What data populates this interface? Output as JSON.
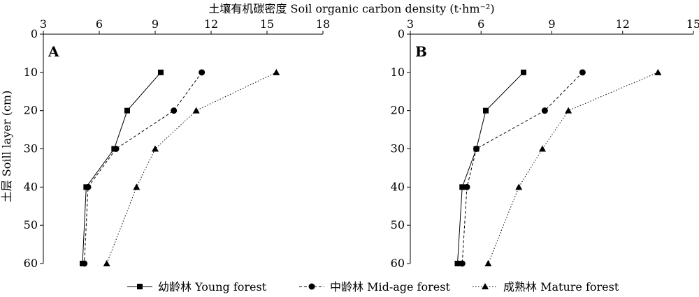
{
  "top_title": "土壤有机碳密度 Soil organic carbon density (t·hm⁻²)",
  "ylabel": "土层 Soill layer (cm)",
  "legend": [
    {
      "label": "幼龄林 Young forest",
      "marker": "square",
      "dash": "solid"
    },
    {
      "label": "中龄林 Mid-age forest",
      "marker": "circle",
      "dash": "dashed"
    },
    {
      "label": "成熟林 Mature forest",
      "marker": "triangle",
      "dash": "dotted"
    }
  ],
  "chart_data": [
    {
      "type": "line",
      "panel": "A",
      "x_axis_position": "top",
      "xlim": [
        3,
        18
      ],
      "xticks": [
        3,
        6,
        9,
        12,
        15,
        18
      ],
      "ylim": [
        0,
        60
      ],
      "yticks": [
        0,
        10,
        20,
        30,
        40,
        50,
        60
      ],
      "y_inverted": true,
      "series": [
        {
          "name": "幼龄林 Young forest",
          "depth": [
            10,
            20,
            30,
            40,
            60
          ],
          "x": [
            9.3,
            7.5,
            6.8,
            5.3,
            5.1
          ]
        },
        {
          "name": "中龄林 Mid-age forest",
          "depth": [
            10,
            20,
            30,
            40,
            60
          ],
          "x": [
            11.5,
            10.0,
            6.9,
            5.4,
            5.2
          ]
        },
        {
          "name": "成熟林 Mature forest",
          "depth": [
            10,
            20,
            30,
            40,
            60
          ],
          "x": [
            15.5,
            11.2,
            9.0,
            8.0,
            6.4
          ]
        }
      ]
    },
    {
      "type": "line",
      "panel": "B",
      "x_axis_position": "top",
      "xlim": [
        3,
        15
      ],
      "xticks": [
        3,
        6,
        9,
        12,
        15
      ],
      "ylim": [
        0,
        60
      ],
      "yticks": [
        0,
        10,
        20,
        30,
        40,
        50,
        60
      ],
      "y_inverted": true,
      "series": [
        {
          "name": "幼龄林 Young forest",
          "depth": [
            10,
            20,
            30,
            40,
            60
          ],
          "x": [
            7.8,
            6.2,
            5.8,
            5.2,
            5.0
          ]
        },
        {
          "name": "中龄林 Mid-age forest",
          "depth": [
            10,
            20,
            30,
            40,
            60
          ],
          "x": [
            10.3,
            8.7,
            5.8,
            5.4,
            5.2
          ]
        },
        {
          "name": "成熟林 Mature forest",
          "depth": [
            10,
            20,
            30,
            40,
            60
          ],
          "x": [
            13.5,
            9.7,
            8.6,
            7.6,
            6.3
          ]
        }
      ]
    }
  ]
}
